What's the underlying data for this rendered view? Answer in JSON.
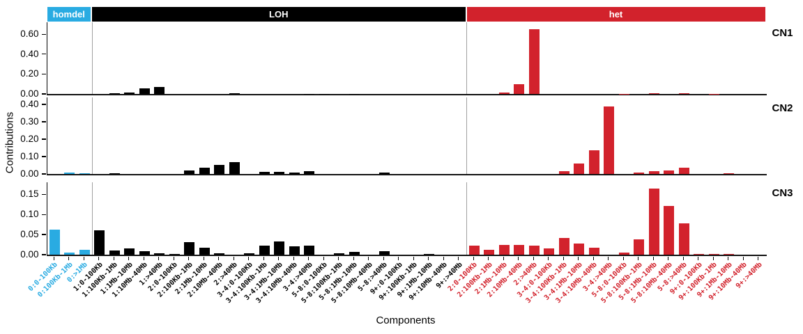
{
  "figure": {
    "y_axis_title": "Contributions",
    "x_axis_title": "Components",
    "background_color": "#ffffff"
  },
  "groups": [
    {
      "id": "homdel",
      "label": "homdel",
      "color": "#29ABE2",
      "start": 0,
      "count": 3
    },
    {
      "id": "loh",
      "label": "LOH",
      "color": "#000000",
      "start": 3,
      "count": 25
    },
    {
      "id": "het",
      "label": "het",
      "color": "#D2222C",
      "start": 28,
      "count": 20
    }
  ],
  "chart_data": {
    "type": "bar",
    "title": "",
    "xlabel": "Components",
    "ylabel": "Contributions",
    "grid": false,
    "legend_position": "none",
    "categories": [
      "0:0-100Kb",
      "0:100Kb-1Mb",
      "0:>1Mb",
      "1:0-100Kb",
      "1:100Kb-1Mb",
      "1:1Mb-10Mb",
      "1:10Mb-40Mb",
      "1:>40Mb",
      "2:0-100Kb",
      "2:100Kb-1Mb",
      "2:1Mb-10Mb",
      "2:10Mb-40Mb",
      "2:>40Mb",
      "3-4:0-100Kb",
      "3-4:100Kb-1Mb",
      "3-4:1Mb-10Mb",
      "3-4:10Mb-40Mb",
      "3-4:>40Mb",
      "5-8:0-100Kb",
      "5-8:100Kb-1Mb",
      "5-8:1Mb-10Mb",
      "5-8:10Mb-40Mb",
      "5-8:>40Mb",
      "9+:0-100Kb",
      "9+:100Kb-1Mb",
      "9+:1Mb-10Mb",
      "9+:10Mb-40Mb",
      "9+:>40Mb",
      "2:0-100Kb",
      "2:100Kb-1Mb",
      "2:1Mb-10Mb",
      "2:10Mb-40Mb",
      "2:>40Mb",
      "3-4:0-100Kb",
      "3-4:100Kb-1Mb",
      "3-4:1Mb-10Mb",
      "3-4:10Mb-40Mb",
      "3-4:>40Mb",
      "5-8:0-100Kb",
      "5-8:100Kb-1Mb",
      "5-8:1Mb-10Mb",
      "5-8:10Mb-40Mb",
      "5-8:>40Mb",
      "9+:0-100Kb",
      "9+:100Kb-1Mb",
      "9+:1Mb-10Mb",
      "9+:10Mb-40Mb",
      "9+:>40Mb"
    ],
    "panels": [
      {
        "name": "CN1",
        "ylim": [
          0,
          0.72
        ],
        "yticks": [
          0.0,
          0.2,
          0.4,
          0.6
        ],
        "values": [
          0,
          0,
          0,
          0,
          0.005,
          0.012,
          0.055,
          0.07,
          0,
          0,
          0,
          0,
          0.005,
          0,
          0,
          0,
          0,
          0.003,
          0.003,
          0,
          0.002,
          0,
          0,
          0,
          0,
          0,
          0,
          0,
          0,
          0,
          0.012,
          0.1,
          0.65,
          0,
          0,
          0,
          0,
          0,
          0.003,
          0,
          0.004,
          0,
          0.004,
          0,
          0.003,
          0,
          0,
          0
        ]
      },
      {
        "name": "CN2",
        "ylim": [
          0,
          0.44
        ],
        "yticks": [
          0.0,
          0.1,
          0.2,
          0.3,
          0.4
        ],
        "values": [
          0,
          0.007,
          0.004,
          0,
          0.004,
          0,
          0,
          0,
          0,
          0.02,
          0.036,
          0.054,
          0.068,
          0,
          0.013,
          0.012,
          0.01,
          0.017,
          0,
          0,
          0,
          0,
          0.01,
          0,
          0,
          0,
          0,
          0,
          0,
          0,
          0,
          0,
          0,
          0,
          0.016,
          0.06,
          0.135,
          0.39,
          0,
          0.01,
          0.018,
          0.022,
          0.035,
          0,
          0,
          0.003,
          0,
          0
        ]
      },
      {
        "name": "CN3",
        "ylim": [
          0,
          0.18
        ],
        "yticks": [
          0.0,
          0.05,
          0.1,
          0.15
        ],
        "values": [
          0.062,
          0.006,
          0.012,
          0.06,
          0.011,
          0.016,
          0.008,
          0.003,
          0.002,
          0.032,
          0.018,
          0.003,
          0,
          0.004,
          0.023,
          0.033,
          0.021,
          0.023,
          0,
          0.003,
          0.007,
          0,
          0.008,
          0,
          0,
          0.002,
          0,
          0,
          0.022,
          0.013,
          0.024,
          0.025,
          0.023,
          0.016,
          0.042,
          0.027,
          0.018,
          0,
          0.005,
          0.038,
          0.165,
          0.122,
          0.078,
          0.002,
          0.002,
          0.002,
          0,
          0
        ]
      }
    ]
  }
}
